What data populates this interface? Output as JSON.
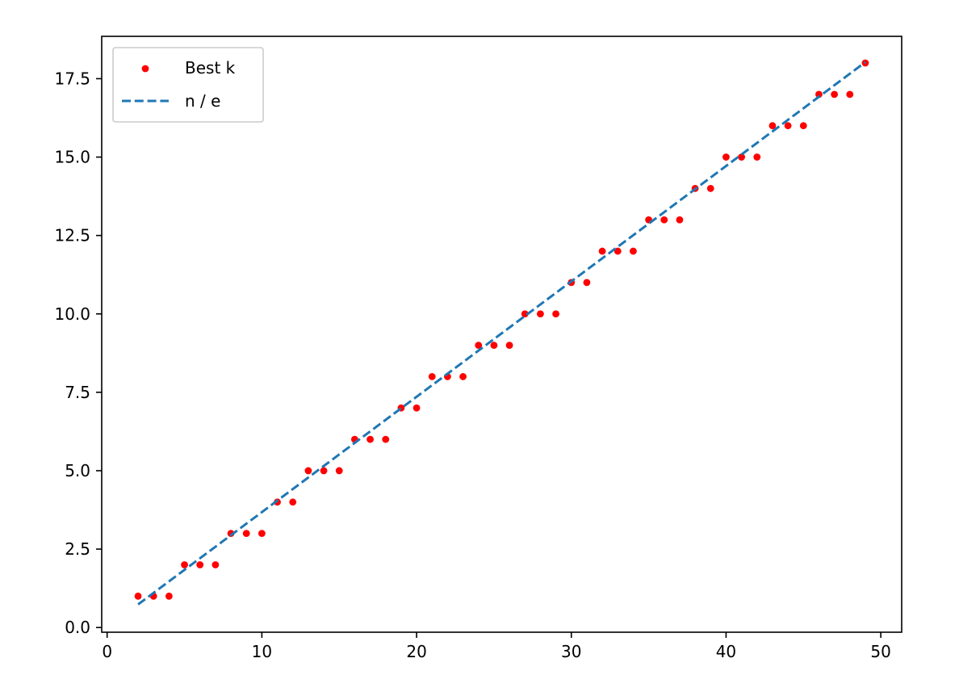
{
  "chart_data": {
    "type": "scatter",
    "title": "",
    "xlabel": "",
    "ylabel": "",
    "xlim": [
      -0.35,
      51.35
    ],
    "ylim": [
      -0.15,
      18.85
    ],
    "xticks": [
      0,
      10,
      20,
      30,
      40,
      50
    ],
    "xtick_labels": [
      "0",
      "10",
      "20",
      "30",
      "40",
      "50"
    ],
    "yticks": [
      0,
      2.5,
      5,
      7.5,
      10,
      12.5,
      15,
      17.5
    ],
    "ytick_labels": [
      "0.0",
      "2.5",
      "5.0",
      "7.5",
      "10.0",
      "12.5",
      "15.0",
      "17.5"
    ],
    "grid": false,
    "legend_position": "upper-left",
    "series": [
      {
        "name": "Best k",
        "kind": "scatter",
        "color": "#ff0000",
        "x": [
          2,
          3,
          4,
          5,
          6,
          7,
          8,
          9,
          10,
          11,
          12,
          13,
          14,
          15,
          16,
          17,
          18,
          19,
          20,
          21,
          22,
          23,
          24,
          25,
          26,
          27,
          28,
          29,
          30,
          31,
          32,
          33,
          34,
          35,
          36,
          37,
          38,
          39,
          40,
          41,
          42,
          43,
          44,
          45,
          46,
          47,
          48,
          49
        ],
        "y": [
          1,
          1,
          1,
          2,
          2,
          2,
          3,
          3,
          3,
          4,
          4,
          5,
          5,
          5,
          6,
          6,
          6,
          7,
          7,
          8,
          8,
          8,
          9,
          9,
          9,
          10,
          10,
          10,
          11,
          11,
          12,
          12,
          12,
          13,
          13,
          13,
          14,
          14,
          15,
          15,
          15,
          16,
          16,
          16,
          17,
          17,
          17,
          18
        ]
      },
      {
        "name": "n / e",
        "kind": "line",
        "style": "dashed",
        "color": "#1f77b4",
        "x": [
          2,
          49
        ],
        "y": [
          0.7358,
          18.0262
        ]
      }
    ]
  }
}
